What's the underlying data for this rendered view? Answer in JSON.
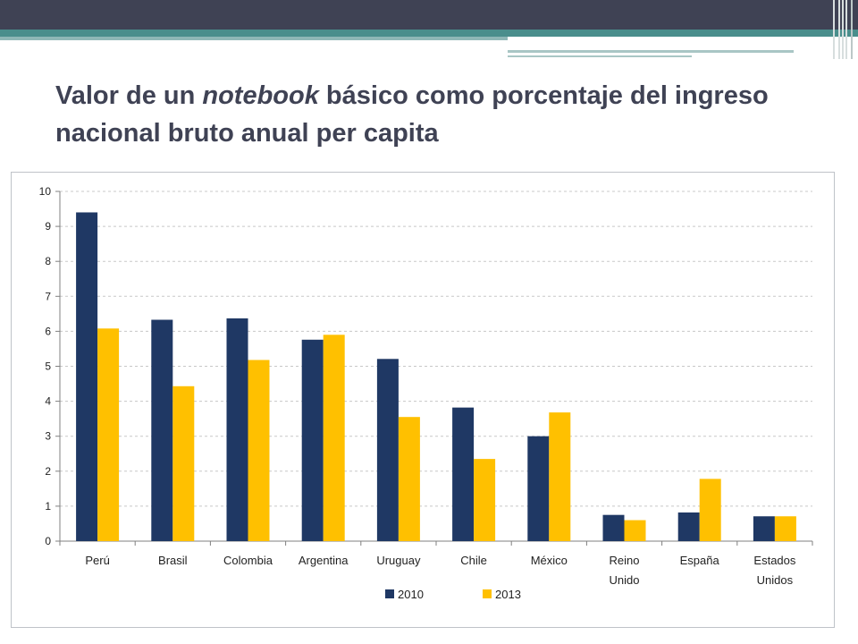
{
  "slide": {
    "title_before": "Valor de un ",
    "title_emph": "notebook",
    "title_after": " básico como porcentaje del ingreso nacional bruto anual per capita"
  },
  "colors": {
    "series_2010": "#1f3864",
    "series_2013": "#ffc000",
    "grid": "#c8c8c8",
    "axis": "#808080"
  },
  "chart_data": {
    "type": "bar",
    "title": "",
    "xlabel": "",
    "ylabel": "",
    "ylim": [
      0,
      10
    ],
    "yticks": [
      "0",
      "1",
      "2",
      "3",
      "4",
      "5",
      "6",
      "7",
      "8",
      "9",
      "10"
    ],
    "categories": [
      [
        "Perú"
      ],
      [
        "Brasil"
      ],
      [
        "Colombia"
      ],
      [
        "Argentina"
      ],
      [
        "Uruguay"
      ],
      [
        "Chile"
      ],
      [
        "México"
      ],
      [
        "Reino",
        "Unido"
      ],
      [
        "España"
      ],
      [
        "Estados",
        "Unidos"
      ]
    ],
    "series": [
      {
        "name": "2010",
        "values": [
          9.4,
          6.33,
          6.37,
          5.76,
          5.21,
          3.82,
          3.0,
          0.75,
          0.82,
          0.71
        ]
      },
      {
        "name": "2013",
        "values": [
          6.08,
          4.43,
          5.18,
          5.9,
          3.55,
          2.35,
          3.68,
          0.6,
          1.78,
          0.71
        ]
      }
    ],
    "grid": true,
    "legend": "bottom"
  }
}
